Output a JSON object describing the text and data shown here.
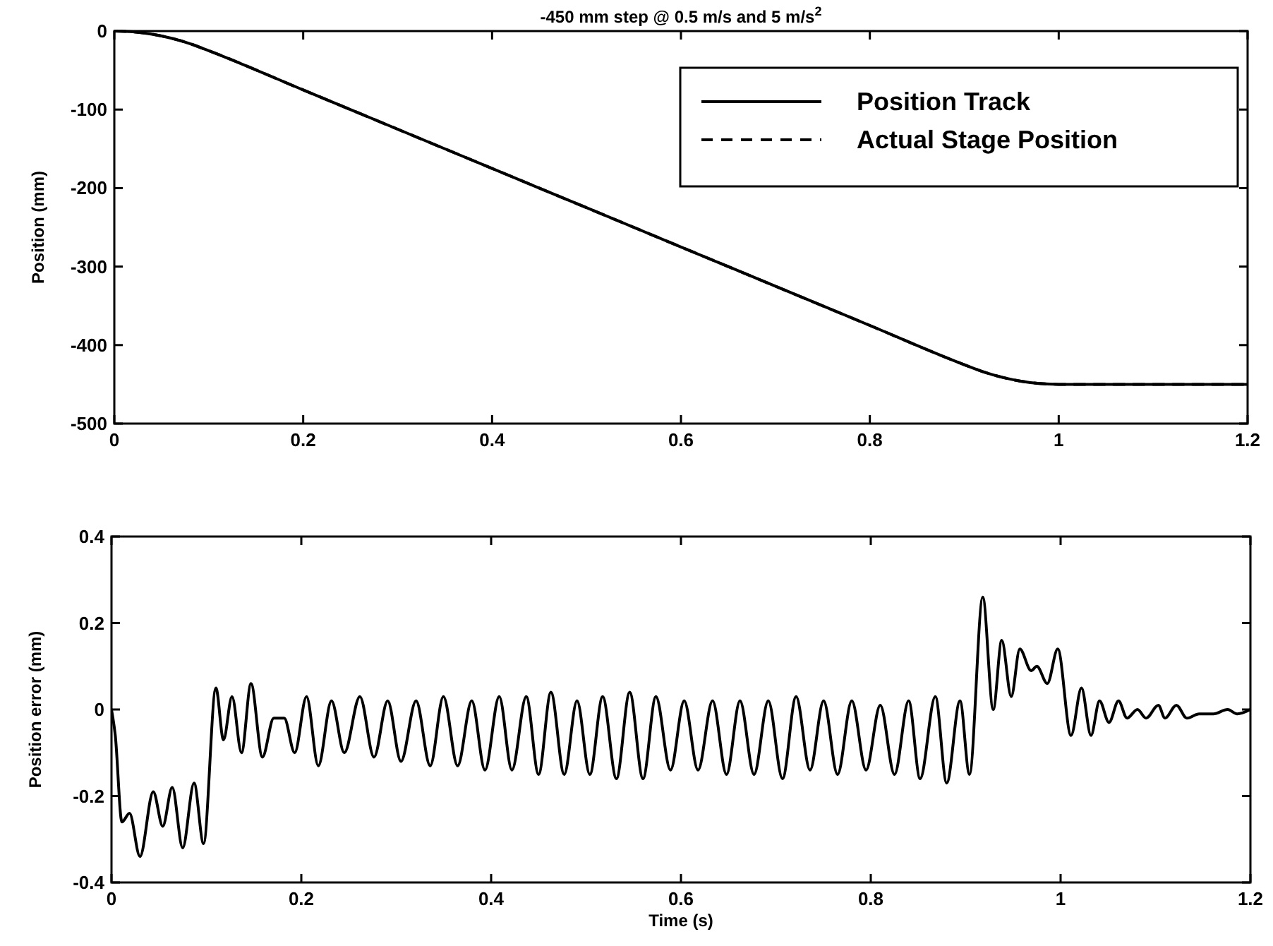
{
  "chart_data": [
    {
      "type": "line",
      "title": "-450 mm step @ 0.5 m/s and 5 m/s$^{2}$",
      "ylabel": "Position (mm)",
      "x": [
        0,
        0.02,
        0.04,
        0.06,
        0.08,
        0.1,
        0.2,
        0.3,
        0.4,
        0.5,
        0.6,
        0.7,
        0.8,
        0.9,
        0.92,
        0.94,
        0.96,
        0.98,
        1.0,
        1.2
      ],
      "series": [
        {
          "name": "Position Track",
          "color": "#000000",
          "line_style": "solid",
          "values": [
            0,
            -1,
            -4,
            -9,
            -16,
            -25,
            -75,
            -125,
            -175,
            -225,
            -275,
            -325,
            -375,
            -425,
            -434,
            -441,
            -446,
            -449,
            -450,
            -450
          ]
        },
        {
          "name": "Actual Stage Position",
          "color": "#000000",
          "line_style": "dashed",
          "values": [
            0,
            -1,
            -4,
            -9,
            -16,
            -25,
            -75,
            -125,
            -175,
            -225,
            -275,
            -325,
            -375,
            -425,
            -434,
            -441,
            -446,
            -449,
            -450,
            -450
          ]
        }
      ],
      "xlim": [
        0,
        1.2
      ],
      "xticks": [
        0,
        0.2,
        0.4,
        0.6,
        0.8,
        1,
        1.2
      ],
      "ylim": [
        -500,
        0
      ],
      "yticks": [
        -500,
        -400,
        -300,
        -200,
        -100,
        0
      ],
      "legend": "top right",
      "grid": false
    },
    {
      "type": "line",
      "xlabel": "Time (s)",
      "ylabel": "Position error (mm)",
      "x": [
        0,
        0.004,
        0.011,
        0.019,
        0.03,
        0.044,
        0.054,
        0.064,
        0.075,
        0.087,
        0.097,
        0.11,
        0.118,
        0.127,
        0.137,
        0.147,
        0.159,
        0.171,
        0.182,
        0.193,
        0.2055,
        0.2179,
        0.2318,
        0.2453,
        0.2617,
        0.2766,
        0.291,
        0.305,
        0.3209,
        0.3358,
        0.3497,
        0.3647,
        0.3796,
        0.3935,
        0.4085,
        0.4219,
        0.437,
        0.45,
        0.463,
        0.477,
        0.4905,
        0.504,
        0.5175,
        0.532,
        0.546,
        0.56,
        0.5736,
        0.589,
        0.6034,
        0.618,
        0.6333,
        0.648,
        0.6622,
        0.677,
        0.692,
        0.707,
        0.7213,
        0.736,
        0.7503,
        0.765,
        0.78,
        0.795,
        0.81,
        0.825,
        0.8399,
        0.852,
        0.868,
        0.88,
        0.894,
        0.904,
        0.918,
        0.929,
        0.938,
        0.948,
        0.957,
        0.969,
        0.975,
        0.986,
        0.997,
        1.011,
        1.022,
        1.032,
        1.041,
        1.051,
        1.061,
        1.07,
        1.081,
        1.09,
        1.103,
        1.11,
        1.122,
        1.133,
        1.146,
        1.161,
        1.176,
        1.186,
        1.2
      ],
      "series": [
        {
          "color": "#000000",
          "line_style": "solid",
          "values": [
            0,
            -0.06,
            -0.26,
            -0.24,
            -0.34,
            -0.19,
            -0.27,
            -0.18,
            -0.32,
            -0.17,
            -0.31,
            0.05,
            -0.07,
            0.03,
            -0.1,
            0.06,
            -0.11,
            -0.02,
            -0.02,
            -0.1,
            0.03,
            -0.13,
            0.02,
            -0.1,
            0.03,
            -0.11,
            0.02,
            -0.12,
            0.02,
            -0.13,
            0.03,
            -0.13,
            0.02,
            -0.14,
            0.03,
            -0.14,
            0.03,
            -0.15,
            0.04,
            -0.15,
            0.02,
            -0.15,
            0.03,
            -0.16,
            0.04,
            -0.16,
            0.03,
            -0.14,
            0.02,
            -0.14,
            0.02,
            -0.15,
            0.02,
            -0.15,
            0.02,
            -0.16,
            0.03,
            -0.14,
            0.02,
            -0.15,
            0.02,
            -0.14,
            0.01,
            -0.15,
            0.02,
            -0.16,
            0.03,
            -0.17,
            0.02,
            -0.15,
            0.26,
            0,
            0.16,
            0.03,
            0.14,
            0.09,
            0.1,
            0.06,
            0.14,
            -0.06,
            0.05,
            -0.06,
            0.02,
            -0.03,
            0.02,
            -0.02,
            0,
            -0.02,
            0.01,
            -0.02,
            0.01,
            -0.02,
            -0.01,
            -0.01,
            0,
            -0.01,
            0
          ]
        }
      ],
      "xlim": [
        0,
        1.2
      ],
      "xticks": [
        0,
        0.2,
        0.4,
        0.6,
        0.8,
        1,
        1.2
      ],
      "ylim": [
        -0.4,
        0.4
      ],
      "yticks": [
        -0.4,
        -0.2,
        0,
        0.2,
        0.4
      ],
      "grid": false
    }
  ]
}
